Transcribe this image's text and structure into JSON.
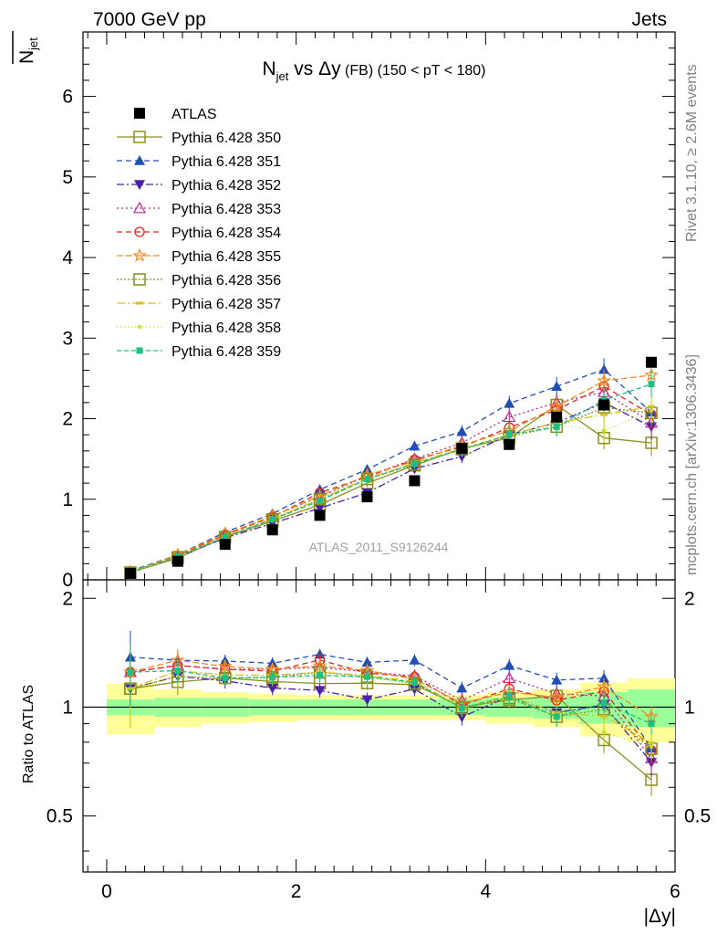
{
  "header": {
    "energy": "7000 GeV pp",
    "process": "Jets",
    "rivet_label": "Rivet 3.1.10, ≥ 2.6M events",
    "mcplots_label": "mcplots.cern.ch [arXiv:1306.3436]",
    "analysis_id": "ATLAS_2011_S9126244"
  },
  "chart_data": {
    "type": "scatter",
    "title": "N_jet vs Δy (FB) (150 < pT < 180)",
    "title_main": "N",
    "title_sub": "jet",
    "title_vs": " vs Δy",
    "title_fb": " (FB)",
    "title_range": " (150 < pT < 180)",
    "ylabel_main": "N",
    "ylabel_sub": "jet",
    "xlabel": "|Δy|",
    "ratio_ylabel": "Ratio to ATLAS",
    "xlim": [
      -0.25,
      6.0
    ],
    "ylim": [
      0,
      6.8
    ],
    "ratio_ylim": [
      0.35,
      2.25
    ],
    "x_ticks": [
      "0",
      "2",
      "4",
      "6"
    ],
    "y_ticks": [
      "0",
      "1",
      "2",
      "3",
      "4",
      "5",
      "6"
    ],
    "ratio_ticks": [
      "0.5",
      "1",
      "2"
    ],
    "legend_position": "top-left",
    "x": [
      0.25,
      0.75,
      1.25,
      1.75,
      2.25,
      2.75,
      3.25,
      3.75,
      4.25,
      4.75,
      5.25,
      5.75
    ],
    "data": {
      "name": "ATLAS",
      "color": "#000000",
      "values": [
        0.08,
        0.23,
        0.44,
        0.62,
        0.8,
        1.03,
        1.23,
        1.63,
        1.68,
        2.02,
        2.17,
        2.7
      ],
      "band_inner": [
        0.05,
        0.06,
        0.06,
        0.05,
        0.05,
        0.05,
        0.05,
        0.05,
        0.06,
        0.07,
        0.1,
        0.12
      ],
      "band_outer": [
        0.16,
        0.12,
        0.1,
        0.09,
        0.08,
        0.08,
        0.08,
        0.08,
        0.1,
        0.12,
        0.17,
        0.2
      ]
    },
    "series": [
      {
        "name": "Pythia 6.428 350",
        "color": "#8f8f1f",
        "dash": "",
        "marker": "square-open",
        "values": [
          0.09,
          0.27,
          0.53,
          0.73,
          0.93,
          1.2,
          1.42,
          1.63,
          1.76,
          2.17,
          1.76,
          1.7
        ]
      },
      {
        "name": "Pythia 6.428 351",
        "color": "#1f4fb4",
        "dash": "6,4",
        "marker": "triangle-up",
        "values": [
          0.11,
          0.31,
          0.59,
          0.82,
          1.12,
          1.37,
          1.66,
          1.84,
          2.19,
          2.4,
          2.61,
          2.08
        ]
      },
      {
        "name": "Pythia 6.428 352",
        "color": "#4b1fa8",
        "dash": "8,3,2,3",
        "marker": "triangle-down",
        "values": [
          0.09,
          0.28,
          0.52,
          0.7,
          0.89,
          1.08,
          1.38,
          1.53,
          1.8,
          1.95,
          2.2,
          1.9
        ]
      },
      {
        "name": "Pythia 6.428 353",
        "color": "#b4298a",
        "dash": "2,3",
        "marker": "triangle-up-open",
        "values": [
          0.1,
          0.3,
          0.56,
          0.79,
          1.03,
          1.29,
          1.5,
          1.7,
          2.02,
          2.2,
          2.33,
          1.95
        ]
      },
      {
        "name": "Pythia 6.428 354",
        "color": "#e02020",
        "dash": "6,4",
        "marker": "circle-open",
        "values": [
          0.1,
          0.3,
          0.56,
          0.78,
          1.08,
          1.28,
          1.49,
          1.65,
          1.89,
          2.11,
          2.4,
          2.05
        ]
      },
      {
        "name": "Pythia 6.428 355",
        "color": "#f08a20",
        "dash": "7,3",
        "marker": "star-open",
        "values": [
          0.1,
          0.31,
          0.57,
          0.79,
          1.04,
          1.3,
          1.47,
          1.67,
          1.85,
          2.15,
          2.47,
          2.54
        ]
      },
      {
        "name": "Pythia 6.428 356",
        "color": "#7f8f1f",
        "dash": "2,2",
        "marker": "square-open",
        "values": [
          0.09,
          0.28,
          0.53,
          0.75,
          1.0,
          1.25,
          1.43,
          1.62,
          1.78,
          1.9,
          2.14,
          2.07
        ]
      },
      {
        "name": "Pythia 6.428 357",
        "color": "#d8c020",
        "dash": "9,3,2,3",
        "marker": "dash",
        "values": [
          0.09,
          0.29,
          0.54,
          0.76,
          1.0,
          1.26,
          1.45,
          1.63,
          1.8,
          1.95,
          2.05,
          2.15
        ]
      },
      {
        "name": "Pythia 6.428 358",
        "color": "#c8e020",
        "dash": "1,3",
        "marker": "dot",
        "values": [
          0.09,
          0.28,
          0.53,
          0.74,
          0.98,
          1.24,
          1.44,
          1.61,
          1.78,
          1.92,
          1.85,
          2.1
        ]
      },
      {
        "name": "Pythia 6.428 359",
        "color": "#20c080",
        "dash": "5,3",
        "marker": "square-filled-small",
        "values": [
          0.1,
          0.29,
          0.53,
          0.75,
          0.98,
          1.25,
          1.44,
          1.62,
          1.8,
          1.9,
          2.23,
          2.43
        ]
      }
    ]
  }
}
